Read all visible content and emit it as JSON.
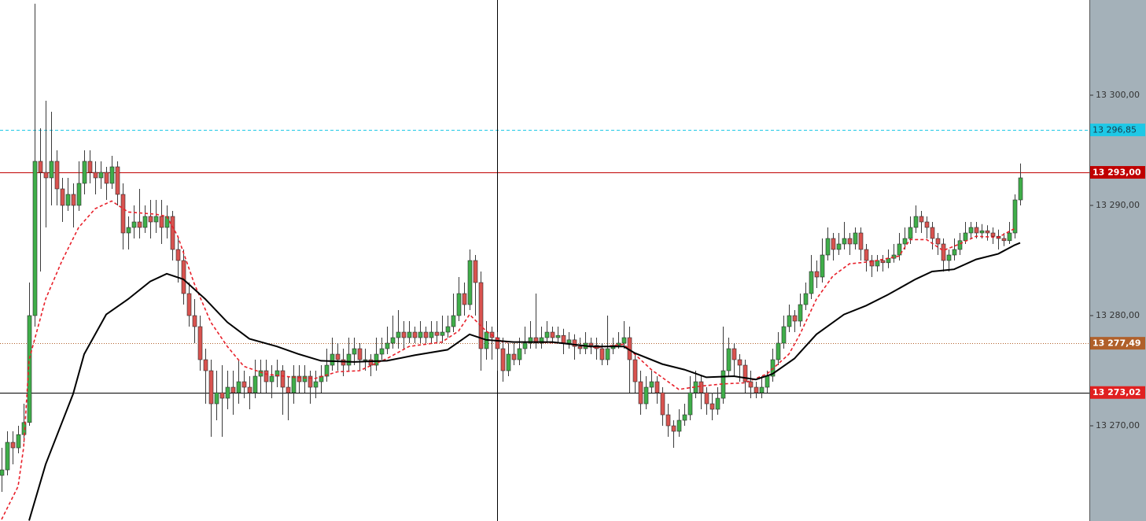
{
  "chart_data": {
    "type": "candlestick",
    "ylim": [
      13261.36,
      13308.64
    ],
    "yticks": [
      {
        "value": 13270,
        "label": "13 270,00"
      },
      {
        "value": 13280,
        "label": "13 280,00"
      },
      {
        "value": 13290,
        "label": "13 290,00"
      },
      {
        "value": 13300,
        "label": "13 300,00"
      }
    ],
    "up_color": "#3fae49",
    "down_color": "#d9534f",
    "crosshair_index": 90,
    "ohlc": [
      [
        13265.5,
        13268,
        13264,
        13266
      ],
      [
        13266,
        13269.5,
        13265.5,
        13268.5
      ],
      [
        13268.5,
        13269.5,
        13266.5,
        13268
      ],
      [
        13268,
        13270,
        13267.5,
        13269.2
      ],
      [
        13269.2,
        13272,
        13268.5,
        13270.3
      ],
      [
        13270.3,
        13283,
        13270,
        13280
      ],
      [
        13280,
        13308.3,
        13279,
        13294
      ],
      [
        13294,
        13297,
        13284,
        13293
      ],
      [
        13293,
        13299.5,
        13288,
        13292.5
      ],
      [
        13292.5,
        13298.5,
        13290,
        13294
      ],
      [
        13294,
        13295,
        13290,
        13291.5
      ],
      [
        13291.5,
        13292.5,
        13288.5,
        13290
      ],
      [
        13290,
        13292.5,
        13289.5,
        13291
      ],
      [
        13291,
        13292,
        13288,
        13290
      ],
      [
        13290,
        13294,
        13289.5,
        13292
      ],
      [
        13292,
        13295,
        13291,
        13294
      ],
      [
        13294,
        13295,
        13292,
        13293
      ],
      [
        13293,
        13294,
        13291,
        13292.5
      ],
      [
        13292.5,
        13294,
        13291.5,
        13293
      ],
      [
        13293,
        13293.5,
        13290.5,
        13292
      ],
      [
        13292,
        13294.5,
        13291.5,
        13293.5
      ],
      [
        13293.5,
        13294,
        13290,
        13291
      ],
      [
        13291,
        13292,
        13286,
        13287.5
      ],
      [
        13287.5,
        13289,
        13286,
        13288
      ],
      [
        13288,
        13290,
        13287,
        13288.5
      ],
      [
        13288.5,
        13291.5,
        13287,
        13288
      ],
      [
        13288,
        13290,
        13287.5,
        13289
      ],
      [
        13289,
        13290.5,
        13287,
        13288.5
      ],
      [
        13288.5,
        13290.5,
        13287.5,
        13289
      ],
      [
        13289,
        13290.5,
        13286.5,
        13288
      ],
      [
        13288,
        13290,
        13287,
        13289
      ],
      [
        13289,
        13289.5,
        13285,
        13286
      ],
      [
        13286,
        13287,
        13283,
        13285
      ],
      [
        13285,
        13286,
        13281,
        13282
      ],
      [
        13282,
        13283,
        13279,
        13280
      ],
      [
        13280,
        13281.5,
        13277.5,
        13279
      ],
      [
        13279,
        13280,
        13275,
        13276
      ],
      [
        13276,
        13277,
        13272,
        13275
      ],
      [
        13275,
        13276,
        13269,
        13272
      ],
      [
        13272,
        13275,
        13270.5,
        13273
      ],
      [
        13273,
        13275.5,
        13269,
        13272.5
      ],
      [
        13272.5,
        13275,
        13271.5,
        13273.5
      ],
      [
        13273.5,
        13275,
        13271,
        13273
      ],
      [
        13273,
        13276,
        13272,
        13274
      ],
      [
        13274,
        13275,
        13272.5,
        13273.5
      ],
      [
        13273.5,
        13274.5,
        13271.5,
        13273
      ],
      [
        13273,
        13276,
        13272.5,
        13274.5
      ],
      [
        13274.5,
        13276,
        13273,
        13275
      ],
      [
        13275,
        13276,
        13273,
        13274
      ],
      [
        13274,
        13275.5,
        13272.5,
        13274.5
      ],
      [
        13274.5,
        13276,
        13273.5,
        13275
      ],
      [
        13275,
        13275.5,
        13271,
        13273.5
      ],
      [
        13273.5,
        13274.5,
        13270.5,
        13273
      ],
      [
        13273,
        13275.5,
        13272,
        13274.5
      ],
      [
        13274.5,
        13275.5,
        13273,
        13274
      ],
      [
        13274,
        13275.5,
        13273,
        13274.5
      ],
      [
        13274.5,
        13275,
        13272,
        13273.5
      ],
      [
        13273.5,
        13275,
        13272.5,
        13274
      ],
      [
        13274,
        13275.5,
        13273,
        13274.5
      ],
      [
        13274.5,
        13277,
        13274,
        13275.5
      ],
      [
        13275.5,
        13278,
        13275,
        13276.5
      ],
      [
        13276.5,
        13277.5,
        13275,
        13276
      ],
      [
        13276,
        13277,
        13274.5,
        13275.5
      ],
      [
        13275.5,
        13278,
        13275,
        13276.5
      ],
      [
        13276.5,
        13278,
        13275.5,
        13277
      ],
      [
        13277,
        13277.5,
        13275,
        13276
      ],
      [
        13276,
        13277,
        13275,
        13276
      ],
      [
        13276,
        13276.5,
        13274.5,
        13275.5
      ],
      [
        13275.5,
        13278,
        13275,
        13276.5
      ],
      [
        13276.5,
        13278,
        13276,
        13277
      ],
      [
        13277,
        13279,
        13276.5,
        13277.5
      ],
      [
        13277.5,
        13280,
        13277,
        13278
      ],
      [
        13278,
        13280.5,
        13277,
        13278.5
      ],
      [
        13278.5,
        13279.5,
        13277,
        13278
      ],
      [
        13278,
        13279.5,
        13277.5,
        13278.5
      ],
      [
        13278.5,
        13279,
        13277.5,
        13278
      ],
      [
        13278,
        13279.5,
        13277.5,
        13278.5
      ],
      [
        13278.5,
        13279,
        13277.5,
        13278
      ],
      [
        13278,
        13279.5,
        13277.5,
        13278.5
      ],
      [
        13278.5,
        13279.5,
        13277.5,
        13278.2
      ],
      [
        13278.2,
        13280,
        13277.5,
        13278.5
      ],
      [
        13278.5,
        13280,
        13278,
        13279
      ],
      [
        13279,
        13282,
        13278.5,
        13280
      ],
      [
        13280,
        13283.5,
        13279.5,
        13282
      ],
      [
        13282,
        13283,
        13280,
        13281
      ],
      [
        13281,
        13286,
        13280.5,
        13285
      ],
      [
        13285,
        13285.5,
        13280,
        13283
      ],
      [
        13283,
        13284,
        13275,
        13277
      ],
      [
        13277,
        13279.5,
        13276,
        13278.5
      ],
      [
        13278.5,
        13279,
        13276,
        13278
      ],
      [
        13278,
        13278.5,
        13275,
        13277
      ],
      [
        13277,
        13278,
        13274,
        13275
      ],
      [
        13275,
        13277.5,
        13274.5,
        13276.5
      ],
      [
        13276.5,
        13277.5,
        13275.5,
        13276
      ],
      [
        13276,
        13278,
        13275.5,
        13277
      ],
      [
        13277,
        13279,
        13276.5,
        13277.5
      ],
      [
        13277.5,
        13279.5,
        13277,
        13278
      ],
      [
        13278,
        13282,
        13277,
        13277.5
      ],
      [
        13277.5,
        13279,
        13277,
        13278
      ],
      [
        13278,
        13279.5,
        13277.5,
        13278.5
      ],
      [
        13278.5,
        13279,
        13277.5,
        13278
      ],
      [
        13278,
        13279,
        13277.5,
        13278.2
      ],
      [
        13278.2,
        13278.8,
        13276.5,
        13277.5
      ],
      [
        13277.5,
        13278.5,
        13277,
        13277.8
      ],
      [
        13277.8,
        13278.3,
        13276,
        13277.2
      ],
      [
        13277.2,
        13278,
        13276.5,
        13277
      ],
      [
        13277,
        13278.5,
        13276.5,
        13277.5
      ],
      [
        13277.5,
        13278,
        13276.5,
        13277.3
      ],
      [
        13277.3,
        13278,
        13276,
        13277
      ],
      [
        13277,
        13277.5,
        13275.5,
        13276
      ],
      [
        13276,
        13280,
        13275.5,
        13277
      ],
      [
        13277,
        13278,
        13276.5,
        13277.3
      ],
      [
        13277.3,
        13278.5,
        13277,
        13277.5
      ],
      [
        13277.5,
        13279.5,
        13277,
        13278
      ],
      [
        13278,
        13279,
        13273,
        13276
      ],
      [
        13276,
        13276.5,
        13273,
        13274
      ],
      [
        13274,
        13275,
        13271,
        13272
      ],
      [
        13272,
        13274.5,
        13271.5,
        13273.5
      ],
      [
        13273.5,
        13275,
        13273,
        13274
      ],
      [
        13274,
        13274.5,
        13272,
        13273
      ],
      [
        13273,
        13273.5,
        13270,
        13271
      ],
      [
        13271,
        13272,
        13269,
        13270
      ],
      [
        13270,
        13270.5,
        13268,
        13269.5
      ],
      [
        13269.5,
        13271.5,
        13269,
        13270.5
      ],
      [
        13270.5,
        13272,
        13270,
        13271
      ],
      [
        13271,
        13274.5,
        13270.5,
        13273
      ],
      [
        13273,
        13275,
        13272.5,
        13274
      ],
      [
        13274,
        13274.5,
        13271.5,
        13273
      ],
      [
        13273,
        13273.5,
        13271,
        13272
      ],
      [
        13272,
        13273,
        13270.5,
        13271.5
      ],
      [
        13271.5,
        13273.5,
        13271,
        13272.5
      ],
      [
        13272.5,
        13279,
        13272,
        13275
      ],
      [
        13275,
        13278,
        13274.5,
        13277
      ],
      [
        13277,
        13277.5,
        13274.5,
        13276
      ],
      [
        13276,
        13276.5,
        13274,
        13275.5
      ],
      [
        13275.5,
        13276,
        13273,
        13274
      ],
      [
        13274,
        13275,
        13272.5,
        13273.5
      ],
      [
        13273.5,
        13274,
        13272.5,
        13273
      ],
      [
        13273,
        13274.5,
        13272.5,
        13273.5
      ],
      [
        13273.5,
        13275,
        13273,
        13274.5
      ],
      [
        13274.5,
        13277,
        13274,
        13276
      ],
      [
        13276,
        13278.5,
        13275.5,
        13277.5
      ],
      [
        13277.5,
        13280,
        13277,
        13279
      ],
      [
        13279,
        13281,
        13278.5,
        13280
      ],
      [
        13280,
        13280.5,
        13278.5,
        13279.5
      ],
      [
        13279.5,
        13282,
        13279,
        13281
      ],
      [
        13281,
        13283,
        13280.5,
        13282
      ],
      [
        13282,
        13285.5,
        13281.5,
        13284
      ],
      [
        13284,
        13285,
        13282.5,
        13283.5
      ],
      [
        13283.5,
        13287,
        13283,
        13285.5
      ],
      [
        13285.5,
        13288,
        13285,
        13287
      ],
      [
        13287,
        13287.5,
        13285,
        13286
      ],
      [
        13286,
        13287.5,
        13285.5,
        13286.5
      ],
      [
        13286.5,
        13288.5,
        13286,
        13287
      ],
      [
        13287,
        13287.5,
        13285.5,
        13286.5
      ],
      [
        13286.5,
        13288,
        13286,
        13287.5
      ],
      [
        13287.5,
        13288,
        13285,
        13286
      ],
      [
        13286,
        13286.5,
        13284,
        13285
      ],
      [
        13285,
        13285.5,
        13283.5,
        13284.5
      ],
      [
        13284.5,
        13285.5,
        13284,
        13285
      ],
      [
        13285,
        13285.5,
        13284,
        13284.8
      ],
      [
        13284.8,
        13286,
        13284.3,
        13285.2
      ],
      [
        13285.2,
        13286.5,
        13284.8,
        13285.5
      ],
      [
        13285.5,
        13287.5,
        13285,
        13286.5
      ],
      [
        13286.5,
        13288,
        13286,
        13287
      ],
      [
        13287,
        13289,
        13286.5,
        13288
      ],
      [
        13288,
        13290,
        13287.5,
        13289
      ],
      [
        13289,
        13289.5,
        13287.5,
        13288.5
      ],
      [
        13288.5,
        13289,
        13287,
        13288
      ],
      [
        13288,
        13288.5,
        13286,
        13287
      ],
      [
        13287,
        13287.5,
        13285.5,
        13286.5
      ],
      [
        13286.5,
        13287,
        13284,
        13285
      ],
      [
        13285,
        13286,
        13284,
        13285.5
      ],
      [
        13285.5,
        13287,
        13285,
        13286
      ],
      [
        13286,
        13287.5,
        13285.5,
        13286.8
      ],
      [
        13286.8,
        13288.5,
        13286.5,
        13287.5
      ],
      [
        13287.5,
        13288.5,
        13287,
        13288
      ],
      [
        13288,
        13288.5,
        13287,
        13287.5
      ],
      [
        13287.5,
        13288.3,
        13287,
        13287.7
      ],
      [
        13287.7,
        13288.2,
        13286.8,
        13287.5
      ],
      [
        13287.5,
        13288,
        13286.5,
        13287.2
      ],
      [
        13287.2,
        13287.8,
        13286,
        13287
      ],
      [
        13287,
        13287.5,
        13286.3,
        13286.8
      ],
      [
        13286.8,
        13288.5,
        13286.5,
        13287.5
      ],
      [
        13287.5,
        13291,
        13287,
        13290.5
      ],
      [
        13290.5,
        13293.8,
        13290,
        13292.5
      ]
    ],
    "lines": [
      {
        "color": "#e8202a",
        "dash": true,
        "x": [
          0,
          3,
          4,
          5,
          8,
          11,
          14,
          17,
          20,
          23,
          28,
          30,
          32,
          35,
          38,
          41,
          44,
          48,
          53,
          57,
          61,
          65,
          70,
          74,
          80,
          83,
          85,
          88,
          91,
          97,
          102,
          108,
          113,
          115,
          118,
          123,
          127,
          131,
          135,
          139,
          143,
          145,
          148,
          151,
          154,
          158,
          163,
          165,
          168,
          171,
          174,
          177,
          181,
          184
        ],
        "values": [
          13261.5,
          13264.5,
          13268,
          13276,
          13281.5,
          13285,
          13288,
          13289.7,
          13290.4,
          13289.4,
          13289.2,
          13289,
          13287.2,
          13282.9,
          13279.4,
          13277.2,
          13275.4,
          13274.7,
          13274.4,
          13274.3,
          13274.9,
          13275,
          13276.1,
          13277.2,
          13277.6,
          13278.6,
          13280.1,
          13278.6,
          13277.6,
          13277.6,
          13277.5,
          13277.1,
          13277.4,
          13276.5,
          13275.1,
          13273.3,
          13273.6,
          13273.8,
          13273.9,
          13274.7,
          13276.5,
          13278.3,
          13281.5,
          13283.6,
          13284.7,
          13284.9,
          13285.4,
          13286.9,
          13286.9,
          13285.9,
          13286.5,
          13287.2,
          13287.1,
          13287.9
        ]
      },
      {
        "color": "#000000",
        "dash": false,
        "x": [
          5,
          8,
          13,
          15,
          19,
          23,
          27,
          30,
          33,
          37,
          41,
          45,
          50,
          54,
          58,
          64,
          70,
          75,
          81,
          85,
          88,
          93,
          100,
          107,
          113,
          115,
          120,
          124,
          128,
          133,
          137,
          140,
          144,
          148,
          153,
          157,
          161,
          166,
          169,
          173,
          177,
          181,
          184,
          185
        ],
        "values": [
          13261.4,
          13266.5,
          13272.9,
          13276.5,
          13280.1,
          13281.5,
          13283.1,
          13283.8,
          13283.3,
          13281.5,
          13279.4,
          13277.9,
          13277.2,
          13276.5,
          13275.9,
          13275.8,
          13275.9,
          13276.4,
          13276.9,
          13278.3,
          13277.8,
          13277.6,
          13277.6,
          13277.2,
          13277.2,
          13276.6,
          13275.6,
          13275.1,
          13274.4,
          13274.5,
          13274.2,
          13274.7,
          13276.1,
          13278.3,
          13280.1,
          13280.9,
          13281.9,
          13283.3,
          13284,
          13284.2,
          13285.1,
          13285.6,
          13286.4,
          13286.6
        ]
      }
    ],
    "levels": [
      {
        "value": 13296.85,
        "label": "13 296,85",
        "color": "#1ec8e6",
        "style": "dashed",
        "label_text_color": "#1a3a4a"
      },
      {
        "value": 13293.0,
        "label": "13 293,00",
        "color": "#c00000",
        "style": "solid",
        "label_text_color": "#ffffff"
      },
      {
        "value": 13277.49,
        "label": "13 277,49",
        "color": "#b0602a",
        "style": "dotted",
        "label_text_color": "#ffffff"
      },
      {
        "value": 13273.02,
        "label": "13 273,02",
        "color": "#000000",
        "label_color": "#e02020",
        "style": "solid",
        "label_text_color": "#ffffff"
      }
    ]
  }
}
